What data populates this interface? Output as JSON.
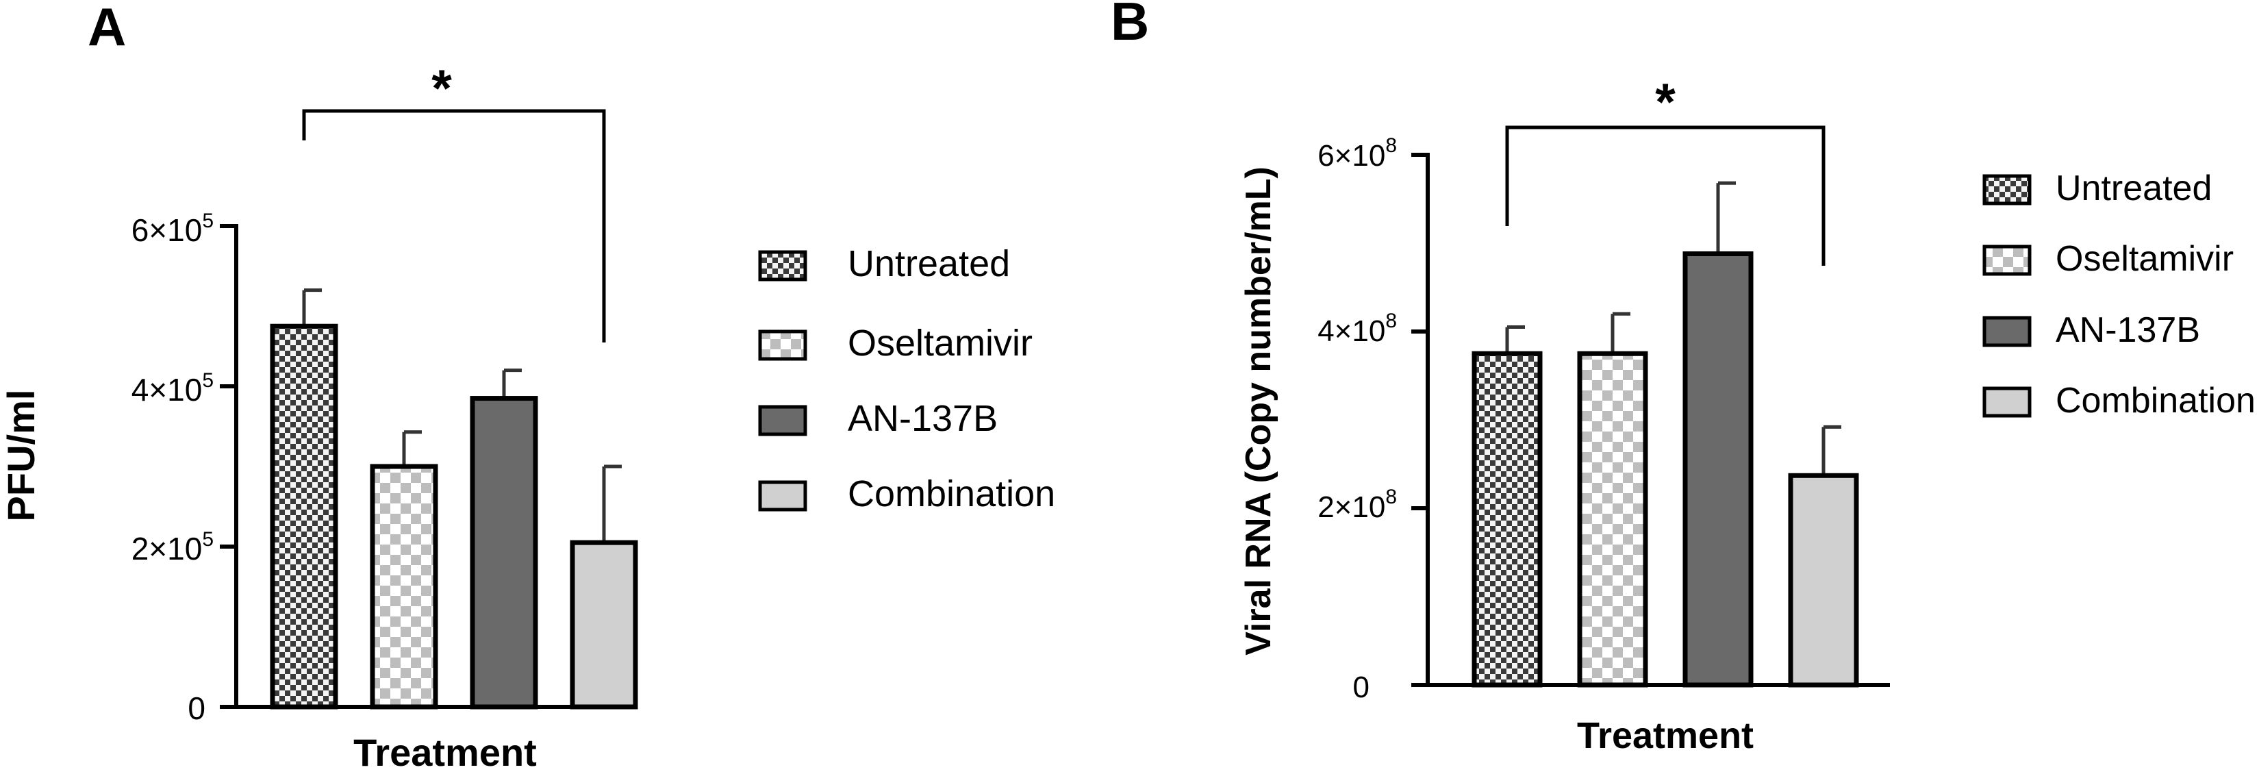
{
  "colors": {
    "untreated": "#4a4a4a",
    "oseltamivir": "#cfcfcf",
    "an137b": "#6a6a6a",
    "combination": "#d0d0d0",
    "axis": "#000000"
  },
  "legend": {
    "items": [
      {
        "key": "untreated",
        "label": "Untreated",
        "pattern": "fine-check"
      },
      {
        "key": "oseltamivir",
        "label": "Oseltamivir",
        "pattern": "coarse-check"
      },
      {
        "key": "an137b",
        "label": "AN-137B",
        "pattern": "solid-dark"
      },
      {
        "key": "combination",
        "label": "Combination",
        "pattern": "solid-light"
      }
    ]
  },
  "panels": [
    {
      "letter": "A",
      "significance": "*",
      "significance_between": [
        0,
        3
      ],
      "tick_labels": [
        {
          "base": "0",
          "exp": ""
        },
        {
          "base": "2×10",
          "exp": "5"
        },
        {
          "base": "4×10",
          "exp": "5"
        },
        {
          "base": "6×10",
          "exp": "5"
        }
      ]
    },
    {
      "letter": "B",
      "significance": "*",
      "significance_between": [
        0,
        3
      ],
      "tick_labels": [
        {
          "base": "0",
          "exp": ""
        },
        {
          "base": "2×10",
          "exp": "8"
        },
        {
          "base": "4×10",
          "exp": "8"
        },
        {
          "base": "6×10",
          "exp": "8"
        }
      ]
    }
  ],
  "chart_data": [
    {
      "type": "bar",
      "title": "",
      "xlabel": "Treatment",
      "ylabel": "PFU/ml",
      "ylim": [
        0,
        600000
      ],
      "yticks": [
        0,
        200000,
        400000,
        600000
      ],
      "grid": false,
      "legend_position": "right",
      "categories": [
        "Untreated",
        "Oseltamivir",
        "AN-137B",
        "Combination"
      ],
      "values": [
        475000,
        300000,
        385000,
        205000
      ],
      "errors": [
        45000,
        43000,
        35000,
        95000
      ]
    },
    {
      "type": "bar",
      "title": "",
      "xlabel": "Treatment",
      "ylabel": "Viral RNA (Copy number/mL)",
      "ylim": [
        0,
        600000000
      ],
      "yticks": [
        0,
        200000000,
        400000000,
        600000000
      ],
      "grid": false,
      "legend_position": "right",
      "categories": [
        "Untreated",
        "Oseltamivir",
        "AN-137B",
        "Combination"
      ],
      "values": [
        375000000,
        375000000,
        488000000,
        237000000
      ],
      "errors": [
        30000000,
        45000000,
        80000000,
        55000000
      ]
    }
  ]
}
